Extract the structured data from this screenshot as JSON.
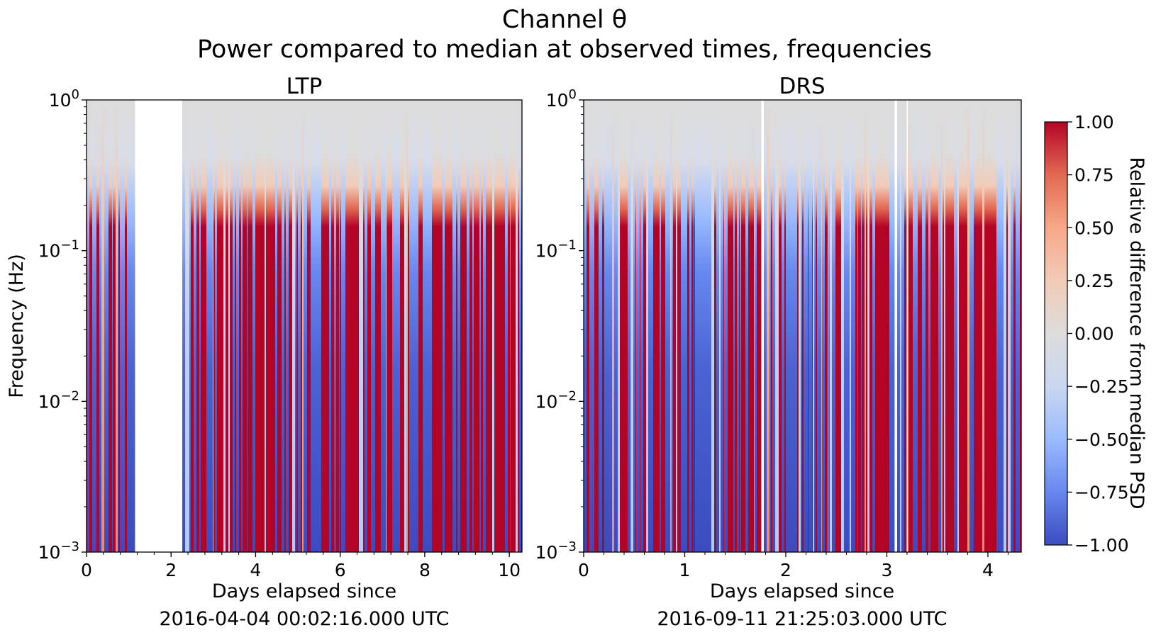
{
  "chart_data": [
    {
      "type": "heatmap",
      "suptitle": "Channel θ",
      "subtitle": "Power compared to median at observed times, frequencies",
      "title": "LTP",
      "xlabel": "Days elapsed since",
      "xlabel_date": "2016-04-04 00:02:16.000 UTC",
      "ylabel": "Frequency (Hz)",
      "x_ticks": [
        0,
        2,
        4,
        6,
        8,
        10
      ],
      "xlim": [
        0,
        10.3
      ],
      "y_scale": "log",
      "y_ticks": [
        0.001,
        0.01,
        0.1,
        1
      ],
      "ylim": [
        0.001,
        1
      ],
      "data_gaps": [
        [
          1.12,
          2.28
        ]
      ],
      "colormap": "coolwarm"
    },
    {
      "type": "heatmap",
      "title": "DRS",
      "xlabel": "Days elapsed since",
      "xlabel_date": "2016-09-11 21:25:03.000 UTC",
      "x_ticks": [
        0,
        1,
        2,
        3,
        4
      ],
      "xlim": [
        0,
        4.33
      ],
      "y_scale": "log",
      "y_ticks": [
        0.001,
        0.01,
        0.1,
        1
      ],
      "ylim": [
        0.001,
        1
      ],
      "data_gaps": [
        [
          0.905,
          0.915
        ],
        [
          1.495,
          1.505
        ],
        [
          1.755,
          1.77
        ],
        [
          2.065,
          2.075
        ],
        [
          2.36,
          2.37
        ],
        [
          3.08,
          3.09
        ],
        [
          3.2,
          3.21
        ]
      ],
      "colormap": "coolwarm"
    }
  ],
  "colorbar": {
    "label": "Relative difference from median PSD",
    "min": -1.0,
    "max": 1.0,
    "ticks": [
      "−1.00",
      "−0.75",
      "−0.50",
      "−0.25",
      "0.00",
      "0.25",
      "0.50",
      "0.75",
      "1.00"
    ],
    "colors": [
      "#3b4cc0",
      "#6788ee",
      "#9abbff",
      "#c9d7f0",
      "#dddcdc",
      "#f2cbb7",
      "#f7a889",
      "#e26952",
      "#b40426"
    ]
  }
}
